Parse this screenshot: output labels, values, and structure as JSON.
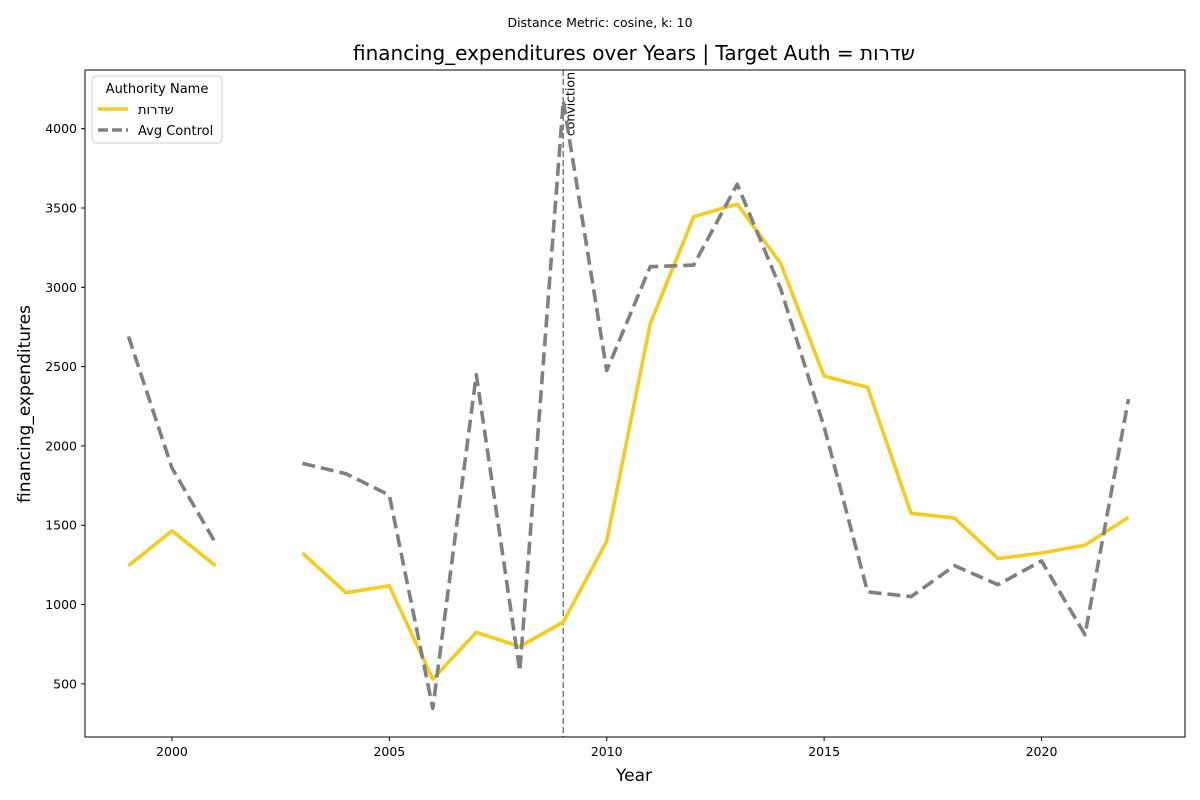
{
  "chart_data": {
    "type": "line",
    "suptitle": "Distance Metric: cosine, k: 10",
    "title": "financing_expenditures over Years | Target Auth = שדרות",
    "xlabel": "Year",
    "ylabel": "financing_expenditures",
    "xlim": [
      1998,
      2023.3
    ],
    "ylim": [
      165,
      4370
    ],
    "xticks": [
      2000,
      2005,
      2010,
      2015,
      2020
    ],
    "yticks": [
      500,
      1000,
      1500,
      2000,
      2500,
      3000,
      3500,
      4000
    ],
    "legend": {
      "title": "Authority Name",
      "position": "top-left"
    },
    "annotation": {
      "x": 2009,
      "label": "conviction"
    },
    "series": [
      {
        "name": "שדרות",
        "color": "#f2cd1f",
        "dash": "solid",
        "x": [
          1999,
          2000,
          2001,
          2002,
          2003,
          2004,
          2005,
          2006,
          2007,
          2008,
          2009,
          2010,
          2011,
          2012,
          2013,
          2014,
          2015,
          2016,
          2017,
          2018,
          2019,
          2020,
          2021,
          2022
        ],
        "y": [
          1245,
          1465,
          1245,
          null,
          1325,
          1075,
          1118,
          530,
          825,
          735,
          890,
          1400,
          2770,
          3445,
          3525,
          3150,
          2440,
          2370,
          1575,
          1545,
          1290,
          1325,
          1375,
          1550
        ]
      },
      {
        "name": "Avg Control",
        "color": "#808080",
        "dash": "dashed",
        "x": [
          1999,
          2000,
          2001,
          2002,
          2003,
          2004,
          2005,
          2006,
          2007,
          2008,
          2009,
          2010,
          2011,
          2012,
          2013,
          2014,
          2015,
          2016,
          2017,
          2018,
          2019,
          2020,
          2021,
          2022
        ],
        "y": [
          2690,
          1860,
          1390,
          null,
          1890,
          1825,
          1690,
          345,
          2450,
          580,
          4175,
          2475,
          3130,
          3140,
          3650,
          2990,
          2120,
          1080,
          1050,
          1245,
          1125,
          1275,
          810,
          2295
        ]
      }
    ]
  }
}
